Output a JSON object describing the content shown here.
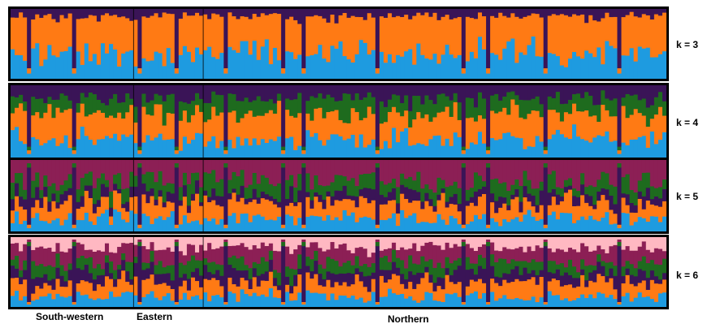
{
  "chart_data": {
    "type": "bar",
    "stacked": true,
    "description_panels": [
      "k = 3",
      "k = 4",
      "k = 5",
      "k = 6"
    ],
    "colors": {
      "blue": "#1E9BE0",
      "orange": "#FF7A14",
      "navy": "#3A1457",
      "green": "#1E6B1E",
      "maroon": "#8C1F55",
      "pink": "#FFB8C2"
    },
    "panels": [
      {
        "label": "k = 3",
        "k": 3,
        "clusters": [
          "navy",
          "orange",
          "blue"
        ],
        "mean_proportions": [
          0.1,
          0.55,
          0.35
        ]
      },
      {
        "label": "k = 4",
        "k": 4,
        "clusters": [
          "navy",
          "green",
          "orange",
          "blue"
        ],
        "mean_proportions": [
          0.18,
          0.22,
          0.35,
          0.25
        ]
      },
      {
        "label": "k = 5",
        "k": 5,
        "clusters": [
          "maroon",
          "green",
          "navy",
          "orange",
          "blue"
        ],
        "mean_proportions": [
          0.3,
          0.18,
          0.12,
          0.22,
          0.18
        ]
      },
      {
        "label": "k = 6",
        "k": 6,
        "clusters": [
          "pink",
          "maroon",
          "green",
          "navy",
          "orange",
          "blue"
        ],
        "mean_proportions": [
          0.15,
          0.2,
          0.16,
          0.14,
          0.2,
          0.15
        ]
      }
    ],
    "n_individuals": 160,
    "populations": [
      {
        "name": "South-western",
        "start": 0,
        "end": 30
      },
      {
        "name": "Eastern",
        "start": 30,
        "end": 47
      },
      {
        "name": "Northern",
        "start": 47,
        "end": 160
      }
    ],
    "outlier_individuals": [
      4,
      15,
      31,
      40,
      52,
      66,
      71,
      89,
      110,
      116,
      130,
      148
    ]
  }
}
